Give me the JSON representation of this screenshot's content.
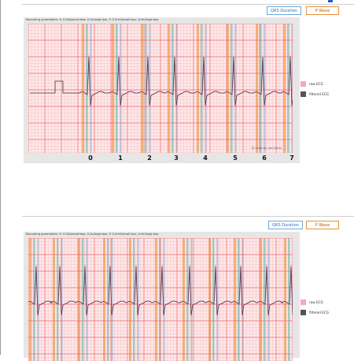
{
  "panels": [
    {
      "buttons": {
        "qrs_label": "QRS Duration",
        "p_wave_label": "P Wave"
      },
      "recording_parameters": "Recording parameters: X: 0.04s/small box; 0.2s/large box, Y: 0.2mV/small box; 1mV/large box",
      "watermark": "JS chart by amCharts",
      "legend": [
        {
          "label": "raw ECG",
          "color": "#f4a7c8"
        },
        {
          "label": "filtered ECG",
          "color": "#555555"
        }
      ],
      "x_tick_labels": [
        "0",
        "1",
        "2",
        "3",
        "4",
        "5",
        "6",
        "7"
      ],
      "colors": {
        "grid_major": "#ee6b6b",
        "grid_minor": "#f7b9b9",
        "background": "#fde8ea",
        "qrs_band": "#8ec6c0",
        "p_wave_band": "#f0a35c",
        "ecg_line": "#4a3b4f"
      }
    },
    {
      "buttons": {
        "qrs_label": "QRS Duration",
        "p_wave_label": "P Wave"
      },
      "recording_parameters": "Recording parameters: X: 0.04s/small box; 0.2s/large box, Y: 0.2mV/small box; 1mV/large box",
      "legend": [
        {
          "label": "raw ECG",
          "color": "#f4a7c8"
        },
        {
          "label": "filtered ECG",
          "color": "#555555"
        }
      ],
      "colors": {
        "grid_major": "#ee6b6b",
        "grid_minor": "#f7b9b9",
        "background": "#fde8ea",
        "qrs_band": "#8ec6c0",
        "p_wave_band": "#f0a35c",
        "ecg_line": "#4a3b4f"
      }
    }
  ]
}
